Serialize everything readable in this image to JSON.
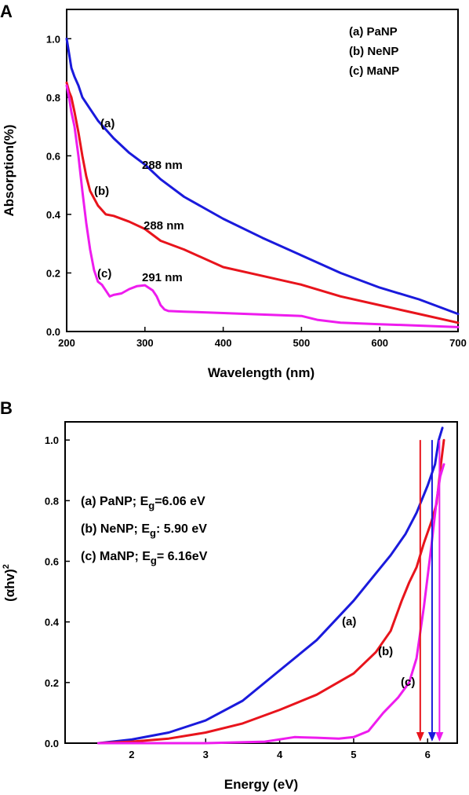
{
  "chart_data": [
    {
      "panel": "A",
      "type": "line",
      "xlabel": "Wavelength (nm)",
      "ylabel": "Absorption(%)",
      "xlim": [
        200,
        700
      ],
      "ylim": [
        0.0,
        1.1
      ],
      "xticks": [
        "200",
        "300",
        "400",
        "500",
        "600",
        "700"
      ],
      "yticks": [
        "0.0",
        "0.2",
        "0.4",
        "0.6",
        "0.8",
        "1.0"
      ],
      "legend": [
        "(a) PaNP",
        "(b) NeNP",
        "(c) MaNP"
      ],
      "legend_position": "top-right",
      "series": [
        {
          "label": "(a)",
          "color": "#1a1adc",
          "x": [
            200,
            203,
            206,
            210,
            215,
            220,
            230,
            240,
            260,
            280,
            300,
            320,
            350,
            400,
            450,
            500,
            550,
            600,
            650,
            700
          ],
          "y": [
            1.0,
            0.95,
            0.9,
            0.87,
            0.84,
            0.8,
            0.76,
            0.72,
            0.66,
            0.61,
            0.57,
            0.52,
            0.46,
            0.385,
            0.32,
            0.26,
            0.2,
            0.15,
            0.11,
            0.06
          ]
        },
        {
          "label": "(b)",
          "color": "#e8141c",
          "x": [
            200,
            203,
            206,
            210,
            215,
            220,
            225,
            230,
            240,
            250,
            260,
            280,
            300,
            320,
            350,
            400,
            450,
            500,
            550,
            600,
            650,
            700
          ],
          "y": [
            0.85,
            0.82,
            0.8,
            0.75,
            0.68,
            0.6,
            0.53,
            0.48,
            0.43,
            0.4,
            0.395,
            0.375,
            0.35,
            0.31,
            0.28,
            0.22,
            0.19,
            0.16,
            0.12,
            0.09,
            0.06,
            0.03
          ]
        },
        {
          "label": "(c)",
          "color": "#ee1cee",
          "x": [
            200,
            203,
            206,
            210,
            215,
            220,
            225,
            230,
            235,
            240,
            245,
            250,
            255,
            260,
            270,
            280,
            290,
            300,
            310,
            315,
            320,
            325,
            330,
            350,
            400,
            450,
            500,
            520,
            550,
            600,
            650,
            700
          ],
          "y": [
            0.84,
            0.8,
            0.75,
            0.7,
            0.6,
            0.48,
            0.37,
            0.28,
            0.21,
            0.17,
            0.16,
            0.14,
            0.12,
            0.125,
            0.13,
            0.145,
            0.155,
            0.158,
            0.14,
            0.12,
            0.09,
            0.075,
            0.07,
            0.068,
            0.063,
            0.058,
            0.053,
            0.04,
            0.03,
            0.025,
            0.02,
            0.015
          ]
        }
      ],
      "annotations": [
        "(a)",
        "(b)",
        "(c)",
        "288 nm",
        "288 nm",
        "291 nm"
      ]
    },
    {
      "panel": "B",
      "type": "line",
      "xlabel": "Energy (eV)",
      "ylabel_main": "(αhv)",
      "ylabel_sup": "2",
      "xlim": [
        1.1,
        6.4
      ],
      "ylim": [
        0.0,
        1.06
      ],
      "xticks": [
        "2",
        "3",
        "4",
        "5",
        "6"
      ],
      "yticks": [
        "0.0",
        "0.2",
        "0.4",
        "0.6",
        "0.8",
        "1.0"
      ],
      "legend": [
        {
          "prefix": "(a) PaNP; E",
          "sub": "g",
          "suffix": "=6.06  eV"
        },
        {
          "prefix": "(b) NeNP; E",
          "sub": "g",
          "suffix": ": 5.90 eV"
        },
        {
          "prefix": "(c) MaNP; E",
          "sub": "g",
          "suffix": "=  6.16eV"
        }
      ],
      "legend_position": "top-left",
      "series": [
        {
          "label": "(a)",
          "color": "#1a1adc",
          "x": [
            1.55,
            2.0,
            2.5,
            3.0,
            3.5,
            4.0,
            4.5,
            5.0,
            5.3,
            5.5,
            5.7,
            5.85,
            6.0,
            6.1,
            6.15,
            6.2
          ],
          "y": [
            0.0,
            0.012,
            0.035,
            0.075,
            0.14,
            0.24,
            0.34,
            0.47,
            0.56,
            0.62,
            0.69,
            0.76,
            0.85,
            0.92,
            1.0,
            1.04
          ]
        },
        {
          "label": "(b)",
          "color": "#e8141c",
          "x": [
            1.55,
            2.0,
            2.5,
            3.0,
            3.5,
            4.0,
            4.5,
            5.0,
            5.3,
            5.5,
            5.65,
            5.75,
            5.85,
            5.95,
            6.05,
            6.12,
            6.18,
            6.22
          ],
          "y": [
            0.0,
            0.005,
            0.015,
            0.035,
            0.065,
            0.11,
            0.16,
            0.23,
            0.3,
            0.37,
            0.47,
            0.53,
            0.58,
            0.66,
            0.73,
            0.79,
            0.92,
            1.0
          ]
        },
        {
          "label": "(c)",
          "color": "#ee1cee",
          "x": [
            1.55,
            3.0,
            3.8,
            4.2,
            4.5,
            4.8,
            5.0,
            5.2,
            5.4,
            5.6,
            5.75,
            5.85,
            5.95,
            6.05,
            6.12,
            6.17,
            6.22
          ],
          "y": [
            0.0,
            0.0,
            0.005,
            0.02,
            0.018,
            0.015,
            0.02,
            0.04,
            0.1,
            0.15,
            0.2,
            0.28,
            0.45,
            0.65,
            0.8,
            0.88,
            0.92
          ]
        }
      ],
      "arrows": [
        {
          "color": "#e8141c",
          "x": 5.9
        },
        {
          "color": "#1a1adc",
          "x": 6.06
        },
        {
          "color": "#ee1cee",
          "x": 6.16
        }
      ],
      "annotations": [
        "(a)",
        "(b)",
        "(c)"
      ]
    }
  ]
}
